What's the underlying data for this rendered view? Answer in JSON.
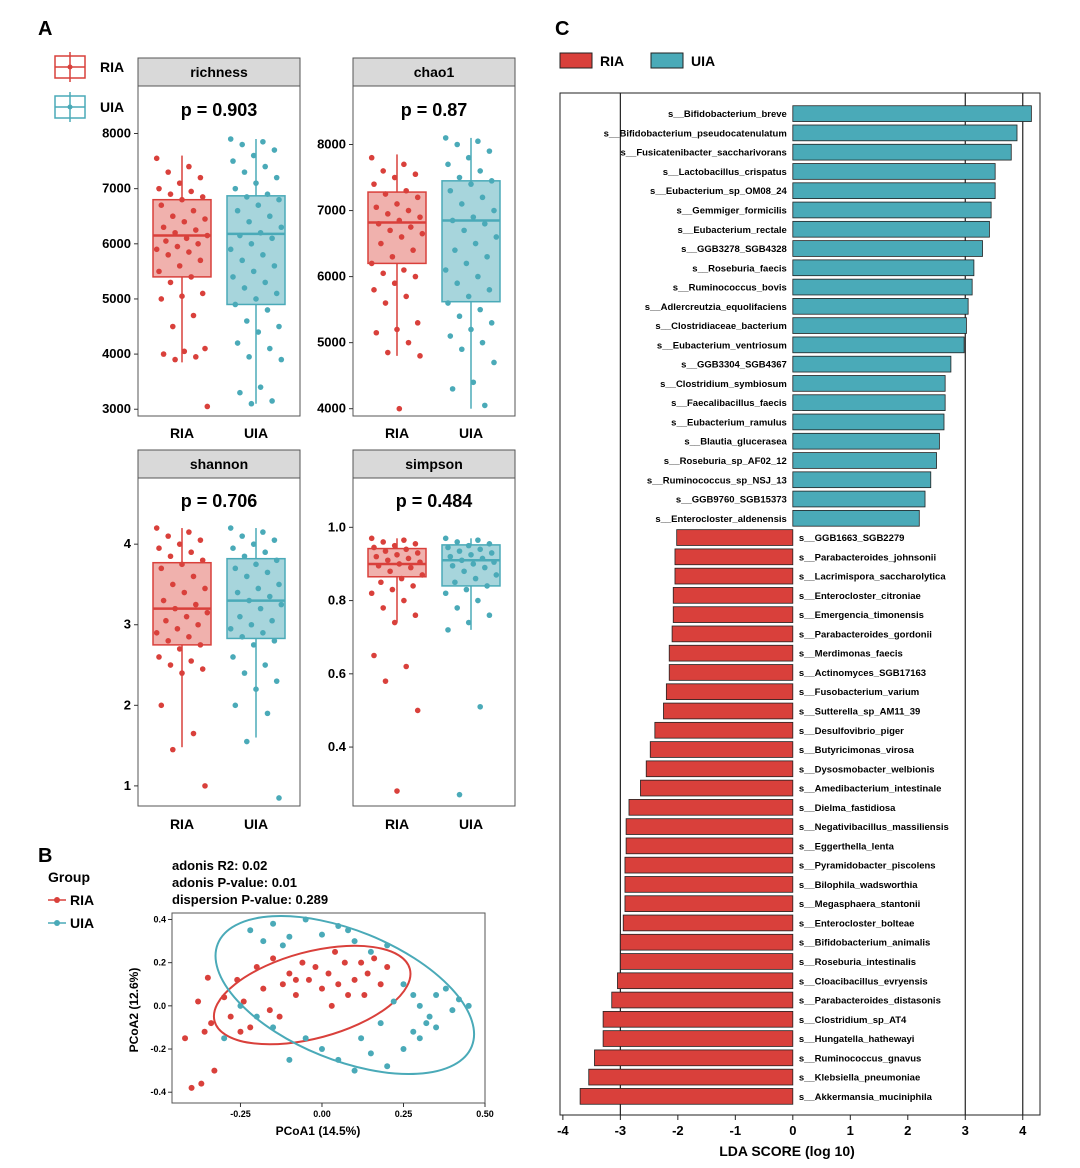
{
  "colors": {
    "RIA": "#d9403b",
    "UIA": "#4aaab8",
    "RIA_fill": "#f0b1ad",
    "UIA_fill": "#a7d5dc",
    "strip": "#d9d9d9"
  },
  "panel_letters": {
    "a": "A",
    "b": "B",
    "c": "C"
  },
  "panelA": {
    "legend": [
      "RIA",
      "UIA"
    ],
    "x_categories": [
      "RIA",
      "UIA"
    ],
    "facets": [
      {
        "label": "richness",
        "p_text": "p = 0.903"
      },
      {
        "label": "chao1",
        "p_text": "p = 0.87"
      },
      {
        "label": "shannon",
        "p_text": "p = 0.706"
      },
      {
        "label": "simpson",
        "p_text": "p = 0.484"
      }
    ]
  },
  "panelB": {
    "legend_title": "Group",
    "legend": [
      "RIA",
      "UIA"
    ],
    "stats": [
      "adonis R2: 0.02",
      "adonis P-value: 0.01",
      "dispersion P-value: 0.289"
    ]
  },
  "panelC": {
    "legend": [
      "RIA",
      "UIA"
    ]
  },
  "chart_data": [
    {
      "type": "box",
      "title": "richness",
      "p_value": "p = 0.903",
      "categories": [
        "RIA",
        "UIA"
      ],
      "ylim": [
        2950,
        8100
      ],
      "yticks": [
        3000,
        4000,
        5000,
        6000,
        7000,
        8000
      ],
      "boxes": [
        {
          "group": "RIA",
          "whisker_low": 3850,
          "q1": 5400,
          "median": 6150,
          "q3": 6800,
          "whisker_high": 7600
        },
        {
          "group": "UIA",
          "whisker_low": 3100,
          "q1": 4900,
          "median": 6180,
          "q3": 6870,
          "whisker_high": 7900
        }
      ],
      "points": {
        "RIA": [
          7550,
          7400,
          7300,
          7200,
          7100,
          7000,
          6950,
          6900,
          6850,
          6800,
          6700,
          6600,
          6500,
          6450,
          6400,
          6300,
          6250,
          6200,
          6150,
          6100,
          6050,
          6000,
          5950,
          5900,
          5850,
          5800,
          5700,
          5600,
          5500,
          5400,
          5300,
          5100,
          5050,
          5000,
          4700,
          4500,
          4100,
          4050,
          4000,
          3950,
          3900,
          3050
        ],
        "UIA": [
          7900,
          7850,
          7800,
          7700,
          7600,
          7500,
          7400,
          7300,
          7200,
          7100,
          7000,
          6900,
          6850,
          6800,
          6700,
          6600,
          6500,
          6400,
          6300,
          6200,
          6150,
          6100,
          6000,
          5900,
          5800,
          5700,
          5600,
          5500,
          5400,
          5300,
          5200,
          5100,
          5000,
          4900,
          4800,
          4600,
          4500,
          4400,
          4200,
          4100,
          3950,
          3900,
          3400,
          3300,
          3150,
          3100
        ]
      }
    },
    {
      "type": "box",
      "title": "chao1",
      "p_value": "p = 0.87",
      "categories": [
        "RIA",
        "UIA"
      ],
      "ylim": [
        3950,
        8250
      ],
      "yticks": [
        4000,
        5000,
        6000,
        7000,
        8000
      ],
      "boxes": [
        {
          "group": "RIA",
          "whisker_low": 4800,
          "q1": 6200,
          "median": 6820,
          "q3": 7280,
          "whisker_high": 7850
        },
        {
          "group": "UIA",
          "whisker_low": 4000,
          "q1": 5620,
          "median": 6850,
          "q3": 7450,
          "whisker_high": 8100
        }
      ],
      "points": {
        "RIA": [
          7800,
          7700,
          7600,
          7550,
          7500,
          7400,
          7300,
          7250,
          7200,
          7100,
          7050,
          7000,
          6950,
          6900,
          6850,
          6800,
          6750,
          6700,
          6650,
          6600,
          6500,
          6400,
          6300,
          6200,
          6100,
          6050,
          6000,
          5900,
          5800,
          5700,
          5600,
          5300,
          5200,
          5150,
          5000,
          4850,
          4800,
          4000
        ],
        "UIA": [
          8100,
          8050,
          8000,
          7900,
          7800,
          7700,
          7600,
          7500,
          7450,
          7400,
          7300,
          7200,
          7100,
          7000,
          6900,
          6850,
          6800,
          6700,
          6600,
          6500,
          6400,
          6300,
          6200,
          6100,
          6000,
          5900,
          5800,
          5700,
          5600,
          5500,
          5400,
          5300,
          5200,
          5100,
          5000,
          4900,
          4700,
          4400,
          4300,
          4050
        ]
      }
    },
    {
      "type": "box",
      "title": "shannon",
      "p_value": "p = 0.706",
      "categories": [
        "RIA",
        "UIA"
      ],
      "ylim": [
        0.8,
        4.3
      ],
      "yticks": [
        1,
        2,
        3,
        4
      ],
      "boxes": [
        {
          "group": "RIA",
          "whisker_low": 1.48,
          "q1": 2.75,
          "median": 3.2,
          "q3": 3.77,
          "whisker_high": 4.2
        },
        {
          "group": "UIA",
          "whisker_low": 1.6,
          "q1": 2.83,
          "median": 3.3,
          "q3": 3.82,
          "whisker_high": 4.2
        }
      ],
      "points": {
        "RIA": [
          4.2,
          4.15,
          4.1,
          4.05,
          4.0,
          3.95,
          3.9,
          3.85,
          3.8,
          3.75,
          3.7,
          3.6,
          3.5,
          3.45,
          3.4,
          3.3,
          3.25,
          3.2,
          3.15,
          3.1,
          3.05,
          3.0,
          2.95,
          2.9,
          2.85,
          2.8,
          2.75,
          2.7,
          2.6,
          2.55,
          2.5,
          2.45,
          2.4,
          2.0,
          1.65,
          1.45,
          1.0
        ],
        "UIA": [
          4.2,
          4.15,
          4.1,
          4.05,
          4.0,
          3.95,
          3.9,
          3.85,
          3.8,
          3.75,
          3.7,
          3.65,
          3.6,
          3.5,
          3.45,
          3.4,
          3.35,
          3.3,
          3.25,
          3.2,
          3.1,
          3.05,
          3.0,
          2.95,
          2.9,
          2.85,
          2.8,
          2.75,
          2.6,
          2.5,
          2.4,
          2.3,
          2.2,
          2.0,
          1.9,
          1.55,
          0.85
        ]
      }
    },
    {
      "type": "box",
      "title": "simpson",
      "p_value": "p = 0.484",
      "categories": [
        "RIA",
        "UIA"
      ],
      "ylim": [
        0.25,
        1.02
      ],
      "yticks": [
        0.4,
        0.6,
        0.8,
        1.0
      ],
      "boxes": [
        {
          "group": "RIA",
          "whisker_low": 0.74,
          "q1": 0.865,
          "median": 0.9,
          "q3": 0.942,
          "whisker_high": 0.97
        },
        {
          "group": "UIA",
          "whisker_low": 0.72,
          "q1": 0.84,
          "median": 0.91,
          "q3": 0.952,
          "whisker_high": 0.97
        }
      ],
      "points": {
        "RIA": [
          0.97,
          0.965,
          0.96,
          0.955,
          0.95,
          0.945,
          0.94,
          0.935,
          0.93,
          0.925,
          0.92,
          0.915,
          0.91,
          0.905,
          0.9,
          0.895,
          0.89,
          0.88,
          0.87,
          0.86,
          0.85,
          0.84,
          0.83,
          0.82,
          0.8,
          0.78,
          0.76,
          0.74,
          0.65,
          0.62,
          0.58,
          0.5,
          0.28
        ],
        "UIA": [
          0.97,
          0.965,
          0.96,
          0.955,
          0.95,
          0.945,
          0.94,
          0.935,
          0.93,
          0.925,
          0.92,
          0.915,
          0.91,
          0.905,
          0.9,
          0.895,
          0.89,
          0.88,
          0.87,
          0.86,
          0.85,
          0.84,
          0.83,
          0.82,
          0.8,
          0.78,
          0.76,
          0.74,
          0.72,
          0.51,
          0.27
        ]
      }
    },
    {
      "type": "scatter",
      "xlabel": "PCoA1 (14.5%)",
      "ylabel": "PCoA2 (12.6%)",
      "xlim": [
        -0.46,
        0.5
      ],
      "ylim": [
        -0.45,
        0.43
      ],
      "xticks": [
        -0.25,
        0.0,
        0.25,
        0.5
      ],
      "yticks": [
        -0.4,
        -0.2,
        0.0,
        0.2,
        0.4
      ],
      "xtick_labels": [
        "-0.25",
        "0.00",
        "0.25",
        "0.50"
      ],
      "ytick_labels": [
        "-0.4",
        "-0.2",
        "0.0",
        "0.2",
        "0.4"
      ],
      "series": [
        {
          "name": "RIA",
          "points": [
            [
              -0.42,
              -0.15
            ],
            [
              -0.4,
              -0.38
            ],
            [
              -0.37,
              -0.36
            ],
            [
              -0.36,
              -0.12
            ],
            [
              -0.34,
              -0.08
            ],
            [
              -0.33,
              -0.3
            ],
            [
              -0.3,
              0.04
            ],
            [
              -0.28,
              -0.05
            ],
            [
              -0.26,
              0.12
            ],
            [
              -0.24,
              0.02
            ],
            [
              -0.22,
              -0.1
            ],
            [
              -0.2,
              0.18
            ],
            [
              -0.18,
              0.08
            ],
            [
              -0.16,
              -0.02
            ],
            [
              -0.15,
              0.22
            ],
            [
              -0.12,
              0.1
            ],
            [
              -0.1,
              0.15
            ],
            [
              -0.08,
              0.05
            ],
            [
              -0.06,
              0.2
            ],
            [
              -0.04,
              0.12
            ],
            [
              -0.02,
              0.18
            ],
            [
              0.0,
              0.08
            ],
            [
              0.02,
              0.15
            ],
            [
              0.04,
              0.25
            ],
            [
              0.05,
              0.1
            ],
            [
              0.07,
              0.2
            ],
            [
              0.08,
              0.05
            ],
            [
              0.1,
              0.12
            ],
            [
              0.12,
              0.2
            ],
            [
              0.14,
              0.15
            ],
            [
              0.16,
              0.22
            ],
            [
              0.18,
              0.1
            ],
            [
              0.2,
              0.18
            ],
            [
              -0.38,
              0.02
            ],
            [
              -0.35,
              0.13
            ],
            [
              -0.25,
              -0.12
            ],
            [
              -0.13,
              -0.05
            ],
            [
              0.03,
              0.0
            ],
            [
              0.13,
              0.05
            ],
            [
              -0.08,
              0.12
            ]
          ]
        },
        {
          "name": "UIA",
          "points": [
            [
              -0.22,
              0.35
            ],
            [
              -0.18,
              0.3
            ],
            [
              -0.15,
              0.38
            ],
            [
              -0.1,
              0.32
            ],
            [
              -0.05,
              0.4
            ],
            [
              0.0,
              0.33
            ],
            [
              0.05,
              0.37
            ],
            [
              0.1,
              0.3
            ],
            [
              0.15,
              0.25
            ],
            [
              0.2,
              0.28
            ],
            [
              0.25,
              0.1
            ],
            [
              0.28,
              0.05
            ],
            [
              0.3,
              0.0
            ],
            [
              0.33,
              -0.05
            ],
            [
              0.35,
              -0.1
            ],
            [
              0.38,
              0.08
            ],
            [
              0.4,
              -0.02
            ],
            [
              0.42,
              0.03
            ],
            [
              0.45,
              0.0
            ],
            [
              0.3,
              -0.15
            ],
            [
              0.25,
              -0.2
            ],
            [
              0.2,
              -0.28
            ],
            [
              0.15,
              -0.22
            ],
            [
              0.1,
              -0.3
            ],
            [
              0.05,
              -0.25
            ],
            [
              0.0,
              -0.2
            ],
            [
              -0.05,
              -0.15
            ],
            [
              -0.1,
              -0.25
            ],
            [
              -0.15,
              -0.1
            ],
            [
              -0.2,
              -0.05
            ],
            [
              -0.25,
              0.0
            ],
            [
              -0.3,
              -0.15
            ],
            [
              0.22,
              0.02
            ],
            [
              0.18,
              -0.08
            ],
            [
              0.28,
              -0.12
            ],
            [
              0.35,
              0.05
            ],
            [
              -0.12,
              0.28
            ],
            [
              0.08,
              0.35
            ],
            [
              0.12,
              -0.15
            ],
            [
              0.32,
              -0.08
            ]
          ]
        }
      ],
      "ellipses": [
        {
          "group": "RIA",
          "cx": -0.03,
          "cy": 0.05,
          "rx": 0.31,
          "ry": 0.2,
          "angle_deg": 15
        },
        {
          "group": "UIA",
          "cx": 0.07,
          "cy": 0.05,
          "rx": 0.42,
          "ry": 0.3,
          "angle_deg": -22
        }
      ]
    },
    {
      "type": "bar",
      "orientation": "horizontal",
      "xlabel": "LDA SCORE (log 10)",
      "xlim": [
        -4.05,
        4.3
      ],
      "xticks": [
        -4,
        -3,
        -2,
        -1,
        0,
        1,
        2,
        3,
        4
      ],
      "series": [
        {
          "name": "UIA",
          "categories": [
            "s__Bifidobacterium_breve",
            "s__Bifidobacterium_pseudocatenulatum",
            "s__Fusicatenibacter_saccharivorans",
            "s__Lactobacillus_crispatus",
            "s__Eubacterium_sp_OM08_24",
            "s__Gemmiger_formicilis",
            "s__Eubacterium_rectale",
            "s__GGB3278_SGB4328",
            "s__Roseburia_faecis",
            "s__Ruminococcus_bovis",
            "s__Adlercreutzia_equolifaciens",
            "s__Clostridiaceae_bacterium",
            "s__Eubacterium_ventriosum",
            "s__GGB3304_SGB4367",
            "s__Clostridium_symbiosum",
            "s__Faecalibacillus_faecis",
            "s__Eubacterium_ramulus",
            "s__Blautia_glucerasea",
            "s__Roseburia_sp_AF02_12",
            "s__Ruminococcus_sp_NSJ_13",
            "s__GGB9760_SGB15373",
            "s__Enterocloster_aldenensis"
          ],
          "values": [
            4.15,
            3.9,
            3.8,
            3.52,
            3.52,
            3.45,
            3.42,
            3.3,
            3.15,
            3.12,
            3.05,
            3.02,
            2.98,
            2.75,
            2.65,
            2.65,
            2.63,
            2.55,
            2.5,
            2.4,
            2.3,
            2.2
          ]
        },
        {
          "name": "RIA",
          "categories": [
            "s__GGB1663_SGB2279",
            "s__Parabacteroides_johnsonii",
            "s__Lacrimispora_saccharolytica",
            "s__Enterocloster_citroniae",
            "s__Emergencia_timonensis",
            "s__Parabacteroides_gordonii",
            "s__Merdimonas_faecis",
            "s__Actinomyces_SGB17163",
            "s__Fusobacterium_varium",
            "s__Sutterella_sp_AM11_39",
            "s__Desulfovibrio_piger",
            "s__Butyricimonas_virosa",
            "s__Dysosmobacter_welbionis",
            "s__Amedibacterium_intestinale",
            "s__Dielma_fastidiosa",
            "s__Negativibacillus_massiliensis",
            "s__Eggerthella_lenta",
            "s__Pyramidobacter_piscolens",
            "s__Bilophila_wadsworthia",
            "s__Megasphaera_stantonii",
            "s__Enterocloster_bolteae",
            "s__Bifidobacterium_animalis",
            "s__Roseburia_intestinalis",
            "s__Cloacibacillus_evryensis",
            "s__Parabacteroides_distasonis",
            "s__Clostridium_sp_AT4",
            "s__Hungatella_hathewayi",
            "s__Ruminococcus_gnavus",
            "s__Klebsiella_pneumoniae",
            "s__Akkermansia_muciniphila"
          ],
          "values": [
            -2.02,
            -2.05,
            -2.05,
            -2.08,
            -2.08,
            -2.1,
            -2.15,
            -2.15,
            -2.2,
            -2.25,
            -2.4,
            -2.48,
            -2.55,
            -2.65,
            -2.85,
            -2.9,
            -2.9,
            -2.92,
            -2.92,
            -2.92,
            -2.95,
            -3.0,
            -3.0,
            -3.05,
            -3.15,
            -3.3,
            -3.3,
            -3.45,
            -3.55,
            -3.7
          ]
        }
      ]
    }
  ]
}
